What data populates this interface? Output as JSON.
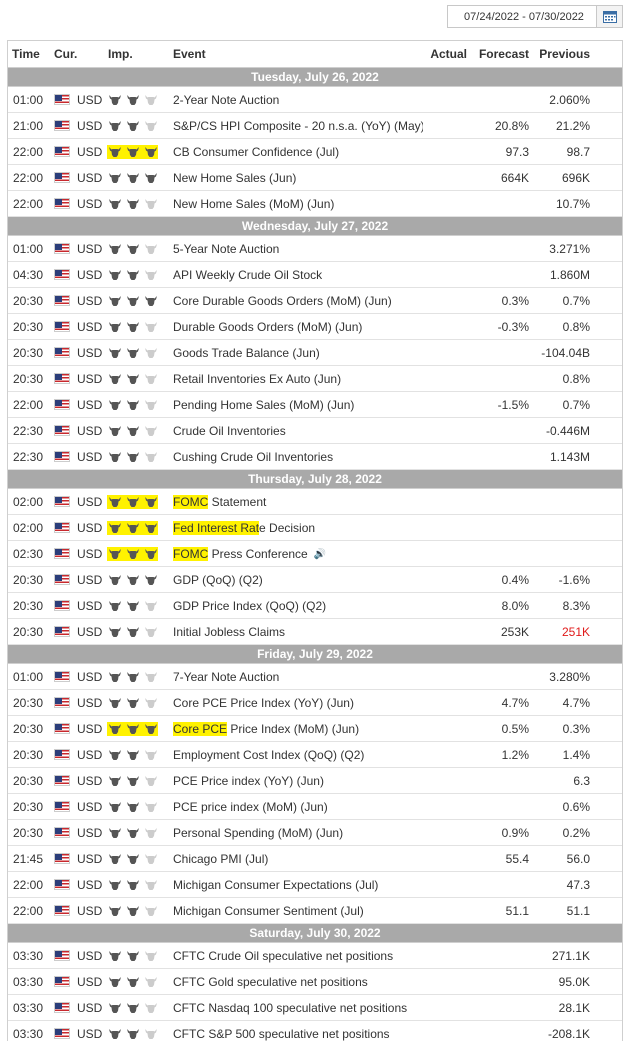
{
  "date_range": "07/24/2022 - 07/30/2022",
  "columns": {
    "time": "Time",
    "cur": "Cur.",
    "imp": "Imp.",
    "event": "Event",
    "actual": "Actual",
    "forecast": "Forecast",
    "previous": "Previous"
  },
  "colors": {
    "day_header_bg": "#a9a9a9",
    "highlight": "#fff200",
    "bull_active": "#555555",
    "bull_inactive": "#cccccc",
    "previous_negative_revision": "#e01a1a"
  },
  "icons": {
    "importance": "bull-icon",
    "currency_flag": "us-flag-icon",
    "calendar": "calendar-icon",
    "speech": "speech-icon"
  },
  "days": [
    {
      "label": "Tuesday, July 26, 2022",
      "events": [
        {
          "time": "01:00",
          "cur": "USD",
          "imp": 2,
          "imp_hl": false,
          "pre": "",
          "hl": "",
          "post": "2-Year Note Auction",
          "actual": "",
          "forecast": "",
          "previous": "2.060%",
          "prev_red": false
        },
        {
          "time": "21:00",
          "cur": "USD",
          "imp": 2,
          "imp_hl": false,
          "pre": "",
          "hl": "",
          "post": "S&P/CS HPI Composite - 20 n.s.a. (YoY) (May)",
          "actual": "",
          "forecast": "20.8%",
          "previous": "21.2%",
          "prev_red": false
        },
        {
          "time": "22:00",
          "cur": "USD",
          "imp": 3,
          "imp_hl": true,
          "pre": "",
          "hl": "",
          "post": "CB Consumer Confidence (Jul)",
          "actual": "",
          "forecast": "97.3",
          "previous": "98.7",
          "prev_red": false
        },
        {
          "time": "22:00",
          "cur": "USD",
          "imp": 3,
          "imp_hl": false,
          "pre": "",
          "hl": "",
          "post": "New Home Sales (Jun)",
          "actual": "",
          "forecast": "664K",
          "previous": "696K",
          "prev_red": false
        },
        {
          "time": "22:00",
          "cur": "USD",
          "imp": 2,
          "imp_hl": false,
          "pre": "",
          "hl": "",
          "post": "New Home Sales (MoM) (Jun)",
          "actual": "",
          "forecast": "",
          "previous": "10.7%",
          "prev_red": false
        }
      ]
    },
    {
      "label": "Wednesday, July 27, 2022",
      "events": [
        {
          "time": "01:00",
          "cur": "USD",
          "imp": 2,
          "imp_hl": false,
          "pre": "",
          "hl": "",
          "post": "5-Year Note Auction",
          "actual": "",
          "forecast": "",
          "previous": "3.271%",
          "prev_red": false
        },
        {
          "time": "04:30",
          "cur": "USD",
          "imp": 2,
          "imp_hl": false,
          "pre": "",
          "hl": "",
          "post": "API Weekly Crude Oil Stock",
          "actual": "",
          "forecast": "",
          "previous": "1.860M",
          "prev_red": false
        },
        {
          "time": "20:30",
          "cur": "USD",
          "imp": 3,
          "imp_hl": false,
          "pre": "",
          "hl": "",
          "post": "Core Durable Goods Orders (MoM) (Jun)",
          "actual": "",
          "forecast": "0.3%",
          "previous": "0.7%",
          "prev_red": false
        },
        {
          "time": "20:30",
          "cur": "USD",
          "imp": 2,
          "imp_hl": false,
          "pre": "",
          "hl": "",
          "post": "Durable Goods Orders (MoM) (Jun)",
          "actual": "",
          "forecast": "-0.3%",
          "previous": "0.8%",
          "prev_red": false
        },
        {
          "time": "20:30",
          "cur": "USD",
          "imp": 2,
          "imp_hl": false,
          "pre": "",
          "hl": "",
          "post": "Goods Trade Balance (Jun)",
          "actual": "",
          "forecast": "",
          "previous": "-104.04B",
          "prev_red": false
        },
        {
          "time": "20:30",
          "cur": "USD",
          "imp": 2,
          "imp_hl": false,
          "pre": "",
          "hl": "",
          "post": "Retail Inventories Ex Auto (Jun)",
          "actual": "",
          "forecast": "",
          "previous": "0.8%",
          "prev_red": false
        },
        {
          "time": "22:00",
          "cur": "USD",
          "imp": 2,
          "imp_hl": false,
          "pre": "",
          "hl": "",
          "post": "Pending Home Sales (MoM) (Jun)",
          "actual": "",
          "forecast": "-1.5%",
          "previous": "0.7%",
          "prev_red": false
        },
        {
          "time": "22:30",
          "cur": "USD",
          "imp": 2,
          "imp_hl": false,
          "pre": "",
          "hl": "",
          "post": "Crude Oil Inventories",
          "actual": "",
          "forecast": "",
          "previous": "-0.446M",
          "prev_red": false
        },
        {
          "time": "22:30",
          "cur": "USD",
          "imp": 2,
          "imp_hl": false,
          "pre": "",
          "hl": "",
          "post": "Cushing Crude Oil Inventories",
          "actual": "",
          "forecast": "",
          "previous": "1.143M",
          "prev_red": false
        }
      ]
    },
    {
      "label": "Thursday, July 28, 2022",
      "events": [
        {
          "time": "02:00",
          "cur": "USD",
          "imp": 3,
          "imp_hl": true,
          "pre": "",
          "hl": "FOMC",
          "post": " Statement",
          "actual": "",
          "forecast": "",
          "previous": "",
          "prev_red": false
        },
        {
          "time": "02:00",
          "cur": "USD",
          "imp": 3,
          "imp_hl": true,
          "pre": "",
          "hl": "Fed Interest Rat",
          "post": "e Decision",
          "actual": "",
          "forecast": "",
          "previous": "",
          "prev_red": false
        },
        {
          "time": "02:30",
          "cur": "USD",
          "imp": 3,
          "imp_hl": true,
          "pre": "",
          "hl": "FOMC",
          "post": " Press Conference",
          "speech": true,
          "actual": "",
          "forecast": "",
          "previous": "",
          "prev_red": false
        },
        {
          "time": "20:30",
          "cur": "USD",
          "imp": 3,
          "imp_hl": false,
          "pre": "",
          "hl": "",
          "post": "GDP (QoQ) (Q2)",
          "actual": "",
          "forecast": "0.4%",
          "previous": "-1.6%",
          "prev_red": false
        },
        {
          "time": "20:30",
          "cur": "USD",
          "imp": 2,
          "imp_hl": false,
          "pre": "",
          "hl": "",
          "post": "GDP Price Index (QoQ) (Q2)",
          "actual": "",
          "forecast": "8.0%",
          "previous": "8.3%",
          "prev_red": false
        },
        {
          "time": "20:30",
          "cur": "USD",
          "imp": 2,
          "imp_hl": false,
          "pre": "",
          "hl": "",
          "post": "Initial Jobless Claims",
          "actual": "",
          "forecast": "253K",
          "previous": "251K",
          "prev_red": true
        }
      ]
    },
    {
      "label": "Friday, July 29, 2022",
      "events": [
        {
          "time": "01:00",
          "cur": "USD",
          "imp": 2,
          "imp_hl": false,
          "pre": "",
          "hl": "",
          "post": "7-Year Note Auction",
          "actual": "",
          "forecast": "",
          "previous": "3.280%",
          "prev_red": false
        },
        {
          "time": "20:30",
          "cur": "USD",
          "imp": 2,
          "imp_hl": false,
          "pre": "",
          "hl": "",
          "post": "Core PCE Price Index (YoY) (Jun)",
          "actual": "",
          "forecast": "4.7%",
          "previous": "4.7%",
          "prev_red": false
        },
        {
          "time": "20:30",
          "cur": "USD",
          "imp": 3,
          "imp_hl": true,
          "pre": "",
          "hl": "Core PCE",
          "post": " Price Index (MoM) (Jun)",
          "actual": "",
          "forecast": "0.5%",
          "previous": "0.3%",
          "prev_red": false
        },
        {
          "time": "20:30",
          "cur": "USD",
          "imp": 2,
          "imp_hl": false,
          "pre": "",
          "hl": "",
          "post": "Employment Cost Index (QoQ) (Q2)",
          "actual": "",
          "forecast": "1.2%",
          "previous": "1.4%",
          "prev_red": false
        },
        {
          "time": "20:30",
          "cur": "USD",
          "imp": 2,
          "imp_hl": false,
          "pre": "",
          "hl": "",
          "post": "PCE Price index (YoY) (Jun)",
          "actual": "",
          "forecast": "",
          "previous": "6.3",
          "prev_red": false
        },
        {
          "time": "20:30",
          "cur": "USD",
          "imp": 2,
          "imp_hl": false,
          "pre": "",
          "hl": "",
          "post": "PCE price index (MoM) (Jun)",
          "actual": "",
          "forecast": "",
          "previous": "0.6%",
          "prev_red": false
        },
        {
          "time": "20:30",
          "cur": "USD",
          "imp": 2,
          "imp_hl": false,
          "pre": "",
          "hl": "",
          "post": "Personal Spending (MoM) (Jun)",
          "actual": "",
          "forecast": "0.9%",
          "previous": "0.2%",
          "prev_red": false
        },
        {
          "time": "21:45",
          "cur": "USD",
          "imp": 2,
          "imp_hl": false,
          "pre": "",
          "hl": "",
          "post": "Chicago PMI (Jul)",
          "actual": "",
          "forecast": "55.4",
          "previous": "56.0",
          "prev_red": false
        },
        {
          "time": "22:00",
          "cur": "USD",
          "imp": 2,
          "imp_hl": false,
          "pre": "",
          "hl": "",
          "post": "Michigan Consumer Expectations (Jul)",
          "actual": "",
          "forecast": "",
          "previous": "47.3",
          "prev_red": false
        },
        {
          "time": "22:00",
          "cur": "USD",
          "imp": 2,
          "imp_hl": false,
          "pre": "",
          "hl": "",
          "post": "Michigan Consumer Sentiment (Jul)",
          "actual": "",
          "forecast": "51.1",
          "previous": "51.1",
          "prev_red": false
        }
      ]
    },
    {
      "label": "Saturday, July 30, 2022",
      "events": [
        {
          "time": "03:30",
          "cur": "USD",
          "imp": 2,
          "imp_hl": false,
          "pre": "",
          "hl": "",
          "post": "CFTC Crude Oil speculative net positions",
          "actual": "",
          "forecast": "",
          "previous": "271.1K",
          "prev_red": false
        },
        {
          "time": "03:30",
          "cur": "USD",
          "imp": 2,
          "imp_hl": false,
          "pre": "",
          "hl": "",
          "post": "CFTC Gold speculative net positions",
          "actual": "",
          "forecast": "",
          "previous": "95.0K",
          "prev_red": false
        },
        {
          "time": "03:30",
          "cur": "USD",
          "imp": 2,
          "imp_hl": false,
          "pre": "",
          "hl": "",
          "post": "CFTC Nasdaq 100 speculative net positions",
          "actual": "",
          "forecast": "",
          "previous": "28.1K",
          "prev_red": false
        },
        {
          "time": "03:30",
          "cur": "USD",
          "imp": 2,
          "imp_hl": false,
          "pre": "",
          "hl": "",
          "post": "CFTC S&P 500 speculative net positions",
          "actual": "",
          "forecast": "",
          "previous": "-208.1K",
          "prev_red": false
        }
      ]
    }
  ]
}
